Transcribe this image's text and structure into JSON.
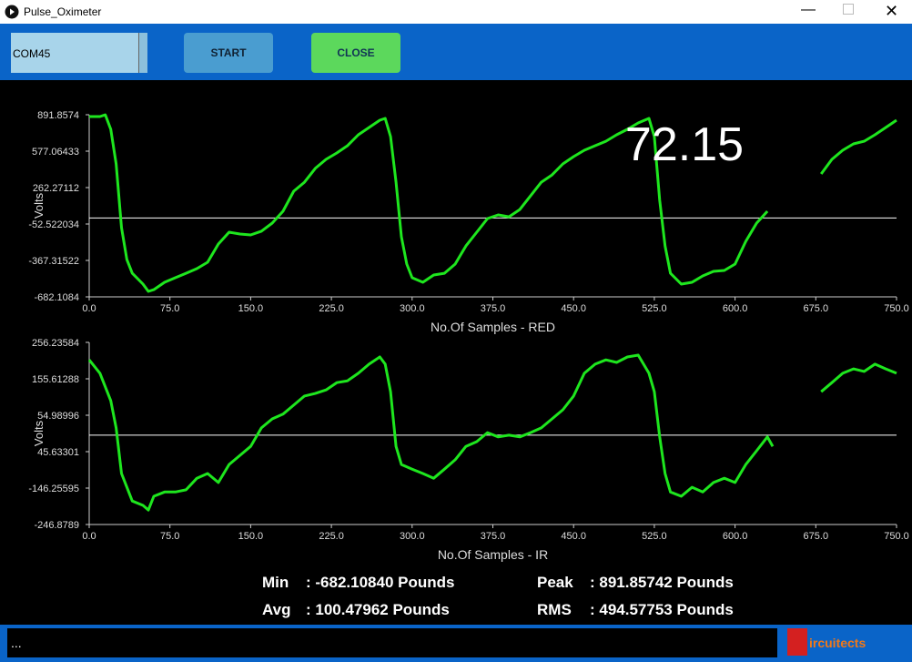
{
  "window": {
    "title": "Pulse_Oximeter"
  },
  "toolbar": {
    "port": "COM45",
    "start": "START",
    "close": "CLOSE"
  },
  "chart_data": [
    {
      "type": "line",
      "xlabel": "No.Of Samples  -  RED",
      "ylabel": "Volts",
      "annotation": "72.15",
      "color": "#1ee61e",
      "hline": 0,
      "xlim": [
        0,
        750
      ],
      "ylim": [
        -682.1084,
        891.8574
      ],
      "xticks": [
        {
          "value": 0,
          "label": "0.0"
        },
        {
          "value": 75,
          "label": "75.0"
        },
        {
          "value": 150,
          "label": "150.0"
        },
        {
          "value": 225,
          "label": "225.0"
        },
        {
          "value": 300,
          "label": "300.0"
        },
        {
          "value": 375,
          "label": "375.0"
        },
        {
          "value": 450,
          "label": "450.0"
        },
        {
          "value": 525,
          "label": "525.0"
        },
        {
          "value": 600,
          "label": "600.0"
        },
        {
          "value": 675,
          "label": "675.0"
        },
        {
          "value": 750,
          "label": "750.0"
        }
      ],
      "yticks": [
        891.8574,
        577.06433,
        262.27112,
        -52.522034,
        -367.31522,
        -682.1084
      ],
      "x": [
        0,
        10,
        15,
        20,
        25,
        30,
        35,
        40,
        50,
        55,
        60,
        70,
        80,
        90,
        100,
        110,
        120,
        130,
        140,
        150,
        160,
        170,
        180,
        190,
        200,
        210,
        220,
        230,
        240,
        250,
        260,
        270,
        275,
        280,
        285,
        290,
        295,
        300,
        310,
        320,
        330,
        340,
        350,
        360,
        370,
        380,
        390,
        400,
        410,
        420,
        430,
        440,
        450,
        460,
        470,
        480,
        490,
        500,
        510,
        520,
        525,
        530,
        535,
        540,
        550,
        560,
        570,
        580,
        590,
        600,
        610,
        620,
        630,
        640,
        680,
        690,
        700,
        710,
        720,
        730,
        740,
        750
      ],
      "values": [
        876,
        876,
        891,
        766,
        467,
        -84,
        -360,
        -478,
        -572,
        -635,
        -620,
        -556,
        -517,
        -478,
        -438,
        -383,
        -226,
        -123,
        -139,
        -147,
        -115,
        -45,
        58,
        231,
        309,
        428,
        506,
        561,
        624,
        719,
        782,
        845,
        860,
        703,
        310,
        -163,
        -399,
        -517,
        -556,
        -493,
        -478,
        -399,
        -242,
        -123,
        -5,
        26,
        10,
        73,
        191,
        309,
        372,
        467,
        530,
        585,
        624,
        663,
        719,
        766,
        821,
        860,
        703,
        152,
        -242,
        -478,
        -572,
        -556,
        -501,
        -462,
        -454,
        -399,
        -202,
        -45,
        58,
        null,
        380,
        506,
        585,
        640,
        663,
        719,
        782,
        845
      ]
    },
    {
      "type": "line",
      "xlabel": "No.Of Samples  -  IR",
      "ylabel": "Volts",
      "color": "#1ee61e",
      "hline": 0,
      "xlim": [
        0,
        750
      ],
      "ylim": [
        -246.8789,
        256.23584
      ],
      "xticks": [
        {
          "value": 0,
          "label": "0.0"
        },
        {
          "value": 75,
          "label": "75.0"
        },
        {
          "value": 150,
          "label": "150.0"
        },
        {
          "value": 225,
          "label": "225.0"
        },
        {
          "value": 300,
          "label": "300.0"
        },
        {
          "value": 375,
          "label": "375.0"
        },
        {
          "value": 450,
          "label": "450.0"
        },
        {
          "value": 525,
          "label": "525.0"
        },
        {
          "value": 600,
          "label": "600.0"
        },
        {
          "value": 675,
          "label": "675.0"
        },
        {
          "value": 750,
          "label": "750.0"
        }
      ],
      "yticks": [
        256.23584,
        155.61288,
        54.98996,
        {
          "value": -45.63301,
          "label": "45.63301"
        },
        -146.25595,
        -246.8789
      ],
      "x": [
        0,
        10,
        20,
        25,
        30,
        35,
        40,
        50,
        55,
        60,
        70,
        80,
        90,
        100,
        110,
        120,
        130,
        140,
        150,
        160,
        170,
        180,
        190,
        200,
        210,
        220,
        230,
        240,
        250,
        260,
        270,
        275,
        280,
        285,
        290,
        300,
        310,
        320,
        330,
        340,
        350,
        360,
        370,
        380,
        390,
        400,
        410,
        420,
        430,
        440,
        450,
        460,
        470,
        480,
        490,
        500,
        510,
        520,
        525,
        530,
        535,
        540,
        550,
        560,
        570,
        580,
        590,
        600,
        610,
        620,
        630,
        635,
        640,
        680,
        690,
        700,
        710,
        720,
        730,
        740,
        750
      ],
      "values": [
        208,
        171,
        95,
        20,
        -106,
        -144,
        -182,
        -194,
        -207,
        -169,
        -157,
        -157,
        -151,
        -119,
        -106,
        -131,
        -81,
        -56,
        -31,
        20,
        45,
        58,
        83,
        108,
        115,
        125,
        145,
        150,
        171,
        196,
        216,
        196,
        120,
        -31,
        -81,
        -94,
        -106,
        -119,
        -94,
        -68,
        -31,
        -18,
        7,
        -5,
        0,
        -5,
        7,
        20,
        45,
        70,
        108,
        171,
        196,
        208,
        201,
        216,
        221,
        171,
        120,
        -5,
        -106,
        -157,
        -169,
        -144,
        -157,
        -131,
        -119,
        -131,
        -81,
        -43,
        -5,
        -31,
        null,
        120,
        145,
        171,
        183,
        176,
        196,
        183,
        171
      ]
    }
  ],
  "stats": {
    "min_label": "Min",
    "min": ": -682.10840 Pounds",
    "peak_label": "Peak",
    "peak": ": 891.85742 Pounds",
    "avg_label": "Avg",
    "avg": ": 100.47962 Pounds",
    "rms_label": "RMS",
    "rms": ": 494.57753 Pounds"
  },
  "status": {
    "text": "...",
    "logo": "ircuitects"
  }
}
